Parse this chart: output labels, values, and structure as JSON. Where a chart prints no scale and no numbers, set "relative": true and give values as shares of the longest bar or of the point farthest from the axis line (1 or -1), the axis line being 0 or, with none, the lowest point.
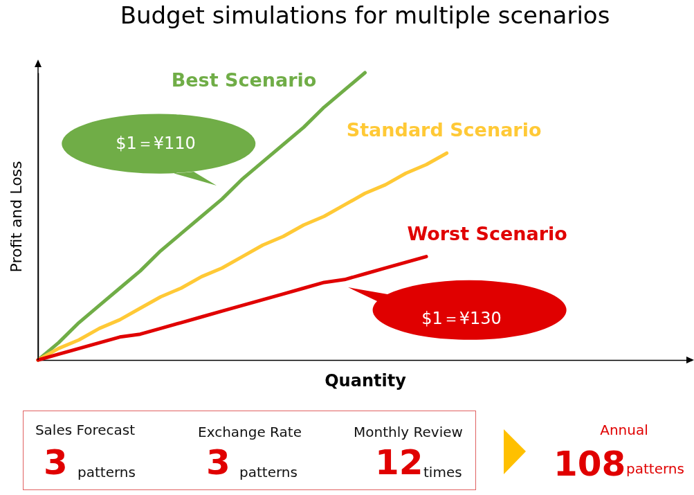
{
  "chart_data": {
    "type": "line",
    "title": "Budget simulations for multiple scenarios",
    "xlabel": "Quantity",
    "ylabel": "Profit and Loss",
    "relative": true,
    "legend": false,
    "categories": [
      null,
      null,
      null,
      null,
      null,
      null,
      null,
      null,
      null,
      null,
      null,
      null,
      null,
      null,
      null,
      null,
      null,
      null,
      null,
      null,
      null,
      null,
      null,
      null,
      null,
      null,
      null,
      null,
      null,
      null,
      null,
      null,
      null
    ],
    "series": [
      {
        "name": "Best Scenario",
        "color": "#70ad47",
        "values": [
          0,
          0.06,
          0.13,
          0.19,
          0.25,
          0.31,
          0.38,
          0.44,
          0.5,
          0.56,
          0.63,
          0.69,
          0.75,
          0.81,
          0.88,
          0.94,
          1,
          null,
          null,
          null,
          null,
          null,
          null,
          null,
          null,
          null,
          null,
          null,
          null,
          null,
          null,
          null,
          null
        ]
      },
      {
        "name": "Standard Scenario",
        "color": "#ffc936",
        "values": [
          0,
          0.04,
          0.07,
          0.11,
          0.14,
          0.18,
          0.22,
          0.25,
          0.29,
          0.32,
          0.36,
          0.4,
          0.43,
          0.47,
          0.5,
          0.54,
          0.58,
          0.61,
          0.65,
          0.68,
          0.72,
          null,
          null,
          null,
          null,
          null,
          null,
          null,
          null,
          null,
          null,
          null,
          null
        ]
      },
      {
        "name": "Worst Scenario",
        "color": "#e00000",
        "values": [
          0,
          0.02,
          0.04,
          0.06,
          0.08,
          0.09,
          0.11,
          0.13,
          0.15,
          0.17,
          0.19,
          0.21,
          0.23,
          0.25,
          0.27,
          0.28,
          0.3,
          0.32,
          0.34,
          0.36,
          null,
          null,
          null,
          null,
          null,
          null,
          null,
          null,
          null,
          null,
          null,
          null,
          null
        ]
      }
    ],
    "annotations": [
      "$1＝¥110",
      "$1＝¥130",
      "Sales Forecast",
      "3",
      "patterns",
      "Exchange Rate",
      "3",
      "patterns",
      "Monthly Review",
      "12",
      "times",
      "Annual",
      "108",
      "patterns"
    ]
  }
}
